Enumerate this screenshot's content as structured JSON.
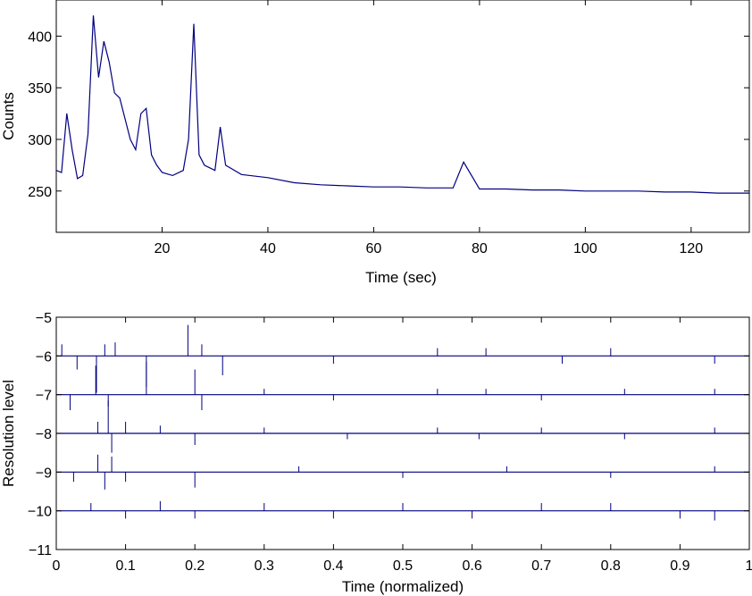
{
  "chart_data": [
    {
      "type": "line",
      "xlabel": "Time (sec)",
      "ylabel": "Counts",
      "xlim": [
        0,
        131
      ],
      "ylim": [
        210,
        435
      ],
      "xticks": [
        20,
        40,
        60,
        80,
        100,
        120
      ],
      "yticks": [
        250,
        300,
        350,
        400
      ],
      "grid": false,
      "line_color": "#000080",
      "series": [
        {
          "x": [
            0,
            1,
            2,
            3,
            4,
            5,
            6,
            7,
            8,
            9,
            10,
            11,
            12,
            13,
            14,
            15,
            16,
            17,
            18,
            19,
            20,
            22,
            24,
            25,
            26,
            27,
            28,
            30,
            31,
            32,
            35,
            40,
            45,
            50,
            55,
            60,
            65,
            70,
            75,
            77,
            80,
            85,
            90,
            95,
            100,
            105,
            110,
            115,
            120,
            125,
            131
          ],
          "values": [
            270,
            268,
            325,
            290,
            262,
            265,
            305,
            420,
            360,
            395,
            375,
            345,
            340,
            320,
            300,
            290,
            325,
            330,
            285,
            275,
            268,
            265,
            270,
            300,
            412,
            285,
            275,
            270,
            312,
            275,
            266,
            263,
            258,
            256,
            255,
            254,
            254,
            253,
            253,
            278,
            252,
            252,
            251,
            251,
            250,
            250,
            250,
            249,
            249,
            248,
            248
          ]
        }
      ]
    },
    {
      "type": "scatter",
      "xlabel": "Time (normalized)",
      "ylabel": "Resolution level",
      "xlim": [
        0,
        1
      ],
      "ylim": [
        -11,
        -5
      ],
      "xticks": [
        0,
        0.1,
        0.2,
        0.3,
        0.4,
        0.5,
        0.6,
        0.7,
        0.8,
        0.9,
        1
      ],
      "yticks": [
        -5,
        -6,
        -7,
        -8,
        -9,
        -10,
        -11
      ],
      "ytick_labels": [
        "−5",
        "−6",
        "−7",
        "−8",
        "−9",
        "−10",
        "−11"
      ],
      "xtick_labels": [
        "0",
        "0.1",
        "0.2",
        "0.3",
        "0.4",
        "0.5",
        "0.6",
        "0.7",
        "0.8",
        "0.9",
        "1"
      ],
      "grid": false,
      "line_color": "#000080",
      "series": [
        {
          "level": -6,
          "x": [
            0.008,
            0.03,
            0.058,
            0.07,
            0.085,
            0.13,
            0.19,
            0.21,
            0.24,
            0.4,
            0.55,
            0.62,
            0.73,
            0.8,
            0.95
          ],
          "values": [
            0.3,
            -0.35,
            -0.95,
            0.3,
            0.35,
            -0.8,
            0.8,
            0.3,
            -0.5,
            -0.2,
            0.2,
            0.2,
            -0.2,
            0.2,
            -0.2
          ]
        },
        {
          "level": -7,
          "x": [
            0.02,
            0.057,
            0.075,
            0.13,
            0.2,
            0.21,
            0.3,
            0.4,
            0.55,
            0.62,
            0.7,
            0.82,
            0.95
          ],
          "values": [
            -0.4,
            0.75,
            -0.3,
            0.85,
            0.65,
            -0.4,
            0.15,
            -0.15,
            0.15,
            0.15,
            -0.15,
            0.15,
            0.15
          ]
        },
        {
          "level": -8,
          "x": [
            0.06,
            0.075,
            0.08,
            0.1,
            0.15,
            0.2,
            0.3,
            0.42,
            0.55,
            0.61,
            0.7,
            0.82,
            0.95
          ],
          "values": [
            0.3,
            0.85,
            -0.5,
            0.3,
            0.2,
            -0.3,
            0.15,
            -0.15,
            0.15,
            -0.15,
            0.15,
            -0.15,
            0.15
          ]
        },
        {
          "level": -9,
          "x": [
            0.025,
            0.06,
            0.07,
            0.08,
            0.1,
            0.2,
            0.35,
            0.5,
            0.65,
            0.8,
            0.95
          ],
          "values": [
            -0.25,
            0.45,
            -0.45,
            0.4,
            -0.25,
            -0.4,
            0.15,
            -0.15,
            0.15,
            -0.15,
            0.15
          ]
        },
        {
          "level": -10,
          "x": [
            0.05,
            0.1,
            0.15,
            0.2,
            0.3,
            0.4,
            0.5,
            0.6,
            0.7,
            0.8,
            0.9,
            0.95
          ],
          "values": [
            0.2,
            -0.2,
            0.25,
            -0.2,
            0.2,
            -0.2,
            0.2,
            -0.2,
            0.2,
            0.2,
            -0.2,
            -0.25
          ]
        }
      ]
    }
  ]
}
